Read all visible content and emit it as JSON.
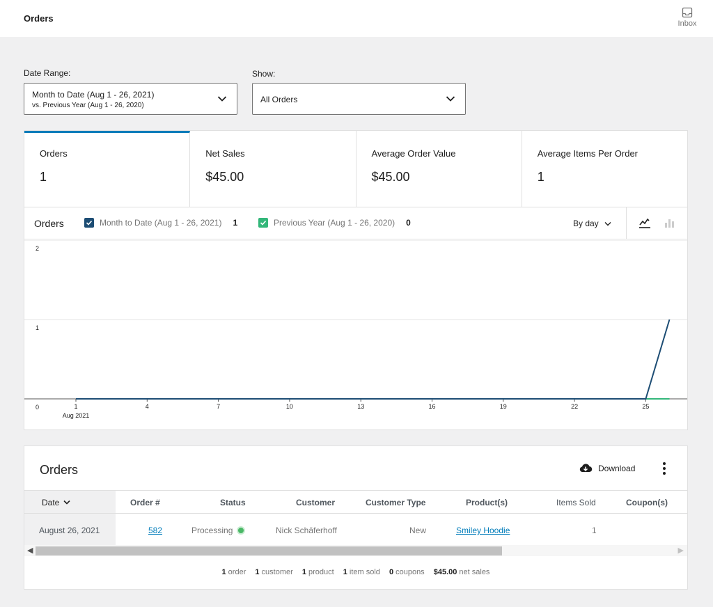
{
  "header": {
    "title": "Orders",
    "inbox_label": "Inbox"
  },
  "filters": {
    "date_range_label": "Date Range:",
    "date_range_main": "Month to Date (Aug 1 - 26, 2021)",
    "date_range_compare": "vs. Previous Year (Aug 1 - 26, 2020)",
    "show_label": "Show:",
    "show_value": "All Orders"
  },
  "summary": [
    {
      "label": "Orders",
      "value": "1"
    },
    {
      "label": "Net Sales",
      "value": "$45.00"
    },
    {
      "label": "Average Order Value",
      "value": "$45.00"
    },
    {
      "label": "Average Items Per Order",
      "value": "1"
    }
  ],
  "chart_header": {
    "title": "Orders",
    "legend": [
      {
        "label": "Month to Date (Aug 1 - 26, 2021)",
        "count": "1",
        "color": "#1d4d74"
      },
      {
        "label": "Previous Year (Aug 1 - 26, 2020)",
        "count": "0",
        "color": "#33b77a"
      }
    ],
    "interval": "By day"
  },
  "chart_data": {
    "type": "line",
    "title": "Orders",
    "xlabel": "Aug 2021",
    "ylabel": "",
    "x": [
      1,
      2,
      3,
      4,
      5,
      6,
      7,
      8,
      9,
      10,
      11,
      12,
      13,
      14,
      15,
      16,
      17,
      18,
      19,
      20,
      21,
      22,
      23,
      24,
      25,
      26
    ],
    "x_ticks": [
      "1",
      "4",
      "7",
      "10",
      "13",
      "16",
      "19",
      "22",
      "25"
    ],
    "y_ticks": [
      "0",
      "1",
      "2"
    ],
    "ylim": [
      0,
      2
    ],
    "series": [
      {
        "name": "Month to Date (Aug 1 - 26, 2021)",
        "color": "#1d4d74",
        "values": [
          0,
          0,
          0,
          0,
          0,
          0,
          0,
          0,
          0,
          0,
          0,
          0,
          0,
          0,
          0,
          0,
          0,
          0,
          0,
          0,
          0,
          0,
          0,
          0,
          0,
          1
        ]
      },
      {
        "name": "Previous Year (Aug 1 - 26, 2020)",
        "color": "#33b77a",
        "values": [
          0,
          0,
          0,
          0,
          0,
          0,
          0,
          0,
          0,
          0,
          0,
          0,
          0,
          0,
          0,
          0,
          0,
          0,
          0,
          0,
          0,
          0,
          0,
          0,
          0,
          0
        ]
      }
    ]
  },
  "table": {
    "title": "Orders",
    "download_label": "Download",
    "columns": [
      "Date",
      "Order #",
      "Status",
      "Customer",
      "Customer Type",
      "Product(s)",
      "Items Sold",
      "Coupon(s)"
    ],
    "rows": [
      {
        "date": "August 26, 2021",
        "order": "582",
        "status": "Processing",
        "customer": "Nick Schäferhoff",
        "customer_type": "New",
        "product": "Smiley Hoodie",
        "items_sold": "1",
        "coupons": ""
      }
    ],
    "footer": [
      {
        "count": "1",
        "label": "order"
      },
      {
        "count": "1",
        "label": "customer"
      },
      {
        "count": "1",
        "label": "product"
      },
      {
        "count": "1",
        "label": "item sold"
      },
      {
        "count": "0",
        "label": "coupons"
      },
      {
        "count": "$45.00",
        "label": "net sales"
      }
    ]
  }
}
